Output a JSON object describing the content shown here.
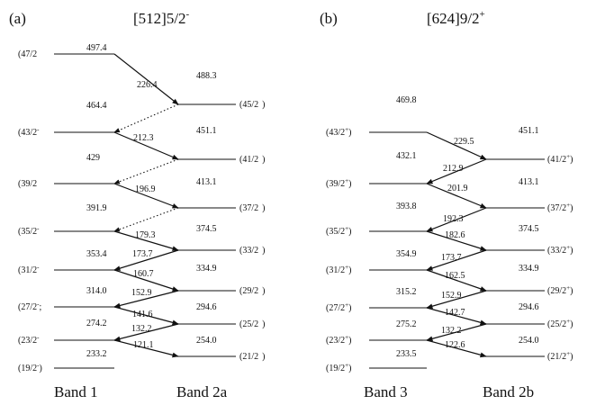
{
  "panels": [
    {
      "label": "(a)",
      "title": "[512]5/2",
      "title_sup": "-",
      "bands": [
        "Band 1",
        "Band 2a"
      ],
      "left_levels": [
        {
          "spin": "(47/2",
          "energy": "497.4"
        },
        {
          "spin": "(43/2",
          "energy": "464.4"
        },
        {
          "spin": "(39/2",
          "energy": "429"
        },
        {
          "spin": "(35/2",
          "energy": "391.9"
        },
        {
          "spin": "(31/2",
          "energy": "353.4"
        },
        {
          "spin": "(27/2",
          "energy": "314.0"
        },
        {
          "spin": "(23/2",
          "energy": "274.2"
        },
        {
          "spin": "(19/2",
          "energy": "233.2"
        }
      ],
      "left_sup": [
        "",
        "-",
        "",
        "-",
        "-",
        "-",
        "-",
        "-"
      ],
      "left_close": [
        "",
        "",
        "",
        "",
        "",
        ";",
        "",
        ")"
      ],
      "right_levels": [
        {
          "spin": "(45/2",
          "energy": "488.3"
        },
        {
          "spin": "(41/2",
          "energy": "451.1"
        },
        {
          "spin": "(37/2",
          "energy": "413.1"
        },
        {
          "spin": "(33/2",
          "energy": "374.5"
        },
        {
          "spin": "(29/2",
          "energy": "334.9"
        },
        {
          "spin": "(25/2",
          "energy": "294.6"
        },
        {
          "spin": "(21/2",
          "energy": "254.0"
        }
      ],
      "right_sup": [
        "",
        "",
        "",
        "",
        "",
        "",
        ""
      ],
      "right_close": [
        ")",
        ")",
        ")",
        ")",
        ")",
        ")",
        ")"
      ],
      "transitions": [
        "226.4",
        "212.3",
        "196.9",
        "179.3",
        "173.7",
        "160.7",
        "152.9",
        "141.6",
        "132.2",
        "121.1"
      ]
    },
    {
      "label": "(b)",
      "title": "[624]9/2",
      "title_sup": "+",
      "bands": [
        "Band 3",
        "Band 2b"
      ],
      "left_levels": [
        {
          "spin": "(43/2",
          "energy": "469.8"
        },
        {
          "spin": "(39/2",
          "energy": "432.1"
        },
        {
          "spin": "(35/2",
          "energy": "393.8"
        },
        {
          "spin": "(31/2",
          "energy": "354.9"
        },
        {
          "spin": "(27/2",
          "energy": "315.2"
        },
        {
          "spin": "(23/2",
          "energy": "275.2"
        },
        {
          "spin": "(19/2",
          "energy": "233.5"
        }
      ],
      "left_sup": [
        "+",
        "+",
        "+",
        "+",
        "+",
        "+",
        "+"
      ],
      "left_close": [
        ")",
        ")",
        ")",
        ")",
        ")",
        ")",
        ")"
      ],
      "right_levels": [
        {
          "spin": "(41/2",
          "energy": "451.1"
        },
        {
          "spin": "(37/2",
          "energy": "413.1"
        },
        {
          "spin": "(33/2",
          "energy": "374.5"
        },
        {
          "spin": "(29/2",
          "energy": "334.9"
        },
        {
          "spin": "(25/2",
          "energy": "294.6"
        },
        {
          "spin": "(21/2",
          "energy": "254.0"
        }
      ],
      "right_sup": [
        "+",
        "+",
        "+",
        "+",
        "+",
        "+"
      ],
      "right_close": [
        ")",
        ")",
        ")",
        ")",
        ")",
        ")"
      ],
      "transitions": [
        "229.5",
        "212.9",
        "201.9",
        "192.3",
        "182.6",
        "173.7",
        "162.5",
        "152.9",
        "142.7",
        "132.2",
        "122.6"
      ]
    }
  ]
}
